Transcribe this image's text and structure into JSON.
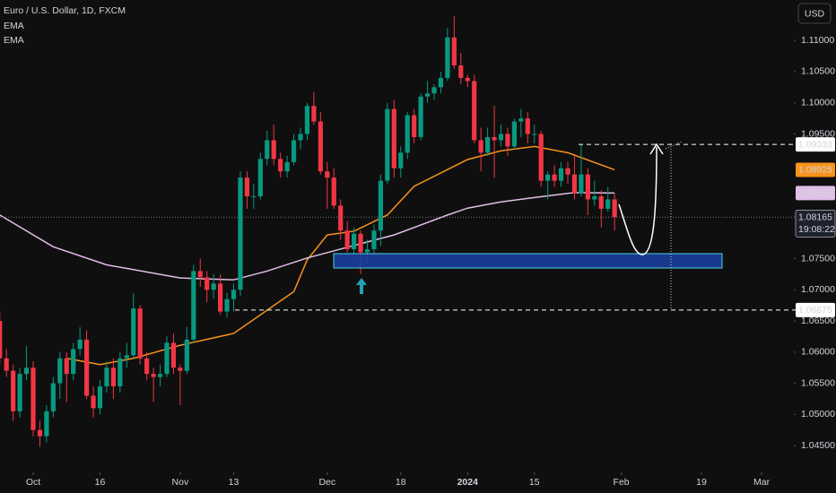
{
  "chart_data": {
    "type": "candlestick",
    "title": "Euro / U.S. Dollar, 1D, FXCM",
    "currency": "USD",
    "countdown": "19:08:22",
    "up_color": "#089981",
    "down_color": "#f23645",
    "x": [
      "2023-09-25",
      "2023-09-26",
      "2023-09-27",
      "2023-09-28",
      "2023-09-29",
      "2023-10-02",
      "2023-10-03",
      "2023-10-04",
      "2023-10-05",
      "2023-10-06",
      "2023-10-09",
      "2023-10-10",
      "2023-10-11",
      "2023-10-12",
      "2023-10-13",
      "2023-10-16",
      "2023-10-17",
      "2023-10-18",
      "2023-10-19",
      "2023-10-20",
      "2023-10-23",
      "2023-10-24",
      "2023-10-25",
      "2023-10-26",
      "2023-10-27",
      "2023-10-30",
      "2023-10-31",
      "2023-11-01",
      "2023-11-02",
      "2023-11-03",
      "2023-11-06",
      "2023-11-07",
      "2023-11-08",
      "2023-11-09",
      "2023-11-10",
      "2023-11-13",
      "2023-11-14",
      "2023-11-15",
      "2023-11-16",
      "2023-11-17",
      "2023-11-20",
      "2023-11-21",
      "2023-11-22",
      "2023-11-23",
      "2023-11-24",
      "2023-11-27",
      "2023-11-28",
      "2023-11-29",
      "2023-11-30",
      "2023-12-01",
      "2023-12-04",
      "2023-12-05",
      "2023-12-06",
      "2023-12-07",
      "2023-12-08",
      "2023-12-11",
      "2023-12-12",
      "2023-12-13",
      "2023-12-14",
      "2023-12-15",
      "2023-12-18",
      "2023-12-19",
      "2023-12-20",
      "2023-12-21",
      "2023-12-22",
      "2023-12-25",
      "2023-12-26",
      "2023-12-27",
      "2023-12-28",
      "2023-12-29",
      "2024-01-01",
      "2024-01-02",
      "2024-01-03",
      "2024-01-04",
      "2024-01-05",
      "2024-01-08",
      "2024-01-09",
      "2024-01-10",
      "2024-01-11",
      "2024-01-12",
      "2024-01-15",
      "2024-01-16",
      "2024-01-17",
      "2024-01-18",
      "2024-01-19",
      "2024-01-22",
      "2024-01-23",
      "2024-01-24",
      "2024-01-25",
      "2024-01-26",
      "2024-01-29",
      "2024-01-30",
      "2024-01-31"
    ],
    "open": [
      1.065,
      1.059,
      1.057,
      1.0505,
      1.0565,
      1.0575,
      1.0475,
      1.0465,
      1.0505,
      1.055,
      1.059,
      1.0565,
      1.0605,
      1.062,
      1.053,
      1.051,
      1.0545,
      1.0575,
      1.0545,
      1.059,
      1.0595,
      1.067,
      1.059,
      1.0565,
      1.056,
      1.0565,
      1.0615,
      1.0575,
      1.057,
      1.062,
      1.073,
      1.072,
      1.07,
      1.071,
      1.0665,
      1.0685,
      1.07,
      1.088,
      1.085,
      1.085,
      1.091,
      1.094,
      1.091,
      1.089,
      1.0905,
      1.094,
      1.095,
      1.0995,
      1.097,
      1.089,
      1.088,
      1.0835,
      1.0795,
      1.0765,
      1.079,
      1.076,
      1.0765,
      1.0795,
      1.0875,
      1.099,
      1.0895,
      1.092,
      1.098,
      1.0945,
      1.101,
      1.1015,
      1.1025,
      1.104,
      1.1105,
      1.106,
      1.104,
      1.1035,
      1.094,
      1.092,
      1.0945,
      1.094,
      1.095,
      1.093,
      1.097,
      1.0975,
      1.095,
      1.095,
      1.0875,
      1.0885,
      1.0875,
      1.0895,
      1.0885,
      1.0855,
      1.0885,
      1.0845,
      1.085,
      1.083,
      1.0845
    ],
    "high": [
      1.0665,
      1.0605,
      1.058,
      1.0575,
      1.061,
      1.0585,
      1.049,
      1.0515,
      1.056,
      1.06,
      1.06,
      1.0615,
      1.064,
      1.0635,
      1.0545,
      1.0555,
      1.0585,
      1.059,
      1.06,
      1.0615,
      1.0695,
      1.0675,
      1.06,
      1.0575,
      1.058,
      1.0625,
      1.063,
      1.058,
      1.064,
      1.074,
      1.075,
      1.073,
      1.0725,
      1.0725,
      1.0695,
      1.071,
      1.089,
      1.089,
      1.087,
      1.092,
      1.0955,
      1.0965,
      1.092,
      1.0915,
      1.095,
      1.096,
      1.1,
      1.1017,
      1.0985,
      1.0905,
      1.0895,
      1.0845,
      1.081,
      1.08,
      1.0795,
      1.078,
      1.0805,
      1.0885,
      1.1,
      1.1005,
      1.093,
      1.0985,
      1.099,
      1.1015,
      1.1035,
      1.103,
      1.105,
      1.112,
      1.1139,
      1.108,
      1.1045,
      1.1045,
      1.096,
      1.096,
      1.0995,
      1.0965,
      1.096,
      1.0975,
      1.099,
      1.0985,
      1.0965,
      1.0955,
      1.089,
      1.09,
      1.0905,
      1.0905,
      1.0915,
      1.0933,
      1.0895,
      1.0875,
      1.086,
      1.0865,
      1.0855
    ],
    "low": [
      1.058,
      1.056,
      1.049,
      1.0495,
      1.0555,
      1.0465,
      1.0448,
      1.0455,
      1.0495,
      1.0525,
      1.052,
      1.0555,
      1.0595,
      1.0525,
      1.0495,
      1.05,
      1.0535,
      1.0525,
      1.0535,
      1.0575,
      1.059,
      1.058,
      1.0555,
      1.052,
      1.0545,
      1.056,
      1.0565,
      1.0515,
      1.0565,
      1.0615,
      1.0705,
      1.068,
      1.0685,
      1.066,
      1.0655,
      1.0665,
      1.069,
      1.083,
      1.083,
      1.0845,
      1.09,
      1.09,
      1.088,
      1.088,
      1.09,
      1.0925,
      1.094,
      1.0965,
      1.0885,
      1.083,
      1.083,
      1.078,
      1.076,
      1.0755,
      1.0725,
      1.0745,
      1.0755,
      1.077,
      1.087,
      1.088,
      1.088,
      1.091,
      1.0935,
      1.094,
      1.1,
      1.1005,
      1.1015,
      1.1035,
      1.1055,
      1.103,
      1.1025,
      1.0935,
      1.089,
      1.0915,
      1.088,
      1.093,
      1.0915,
      1.0925,
      1.0945,
      1.0935,
      1.0935,
      1.0865,
      1.0845,
      1.0865,
      1.0865,
      1.087,
      1.0845,
      1.085,
      1.082,
      1.0835,
      1.08,
      1.0825,
      1.0795
    ],
    "close": [
      1.059,
      1.057,
      1.0505,
      1.0565,
      1.0575,
      1.0475,
      1.0465,
      1.0505,
      1.055,
      1.059,
      1.0565,
      1.0605,
      1.062,
      1.053,
      1.051,
      1.0545,
      1.0575,
      1.0545,
      1.059,
      1.0595,
      1.067,
      1.059,
      1.0565,
      1.056,
      1.0565,
      1.0615,
      1.0575,
      1.057,
      1.062,
      1.073,
      1.072,
      1.07,
      1.071,
      1.0665,
      1.0685,
      1.07,
      1.088,
      1.085,
      1.085,
      1.091,
      1.094,
      1.091,
      1.089,
      1.0905,
      1.094,
      1.095,
      1.0995,
      1.097,
      1.089,
      1.088,
      1.0835,
      1.0795,
      1.0765,
      1.079,
      1.076,
      1.0765,
      1.0795,
      1.0875,
      1.099,
      1.0895,
      1.092,
      1.098,
      1.0945,
      1.101,
      1.1015,
      1.1025,
      1.104,
      1.1105,
      1.106,
      1.104,
      1.1035,
      1.094,
      1.092,
      1.0945,
      1.094,
      1.095,
      1.093,
      1.097,
      1.0975,
      1.095,
      1.095,
      1.0875,
      1.0885,
      1.0875,
      1.0895,
      1.0885,
      1.0855,
      1.0885,
      1.0845,
      1.085,
      1.083,
      1.0845,
      1.08165
    ],
    "series": [
      {
        "name": "EMA",
        "color": "#f7931a",
        "x": [
          "2023-10-09",
          "2023-10-16",
          "2023-10-23",
          "2023-11-01",
          "2023-11-13",
          "2023-11-24",
          "2023-11-28",
          "2023-12-01",
          "2023-12-07",
          "2023-12-14",
          "2023-12-20",
          "2024-01-01",
          "2024-01-08",
          "2024-01-15",
          "2024-01-22",
          "2024-01-31"
        ],
        "values": [
          1.059,
          1.058,
          1.059,
          1.0611,
          1.063,
          1.0697,
          1.0748,
          1.0788,
          1.0794,
          1.082,
          1.0866,
          1.0909,
          1.0923,
          1.093,
          1.092,
          1.08925
        ]
      },
      {
        "name": "EMA",
        "color": "#e1bee7",
        "x": [
          "2023-09-25",
          "2023-10-05",
          "2023-10-17",
          "2023-11-01",
          "2023-11-13",
          "2023-11-20",
          "2023-11-28",
          "2023-12-08",
          "2023-12-15",
          "2023-12-27",
          "2024-01-01",
          "2024-01-08",
          "2024-01-15",
          "2024-01-23",
          "2024-01-31"
        ],
        "values": [
          1.082,
          1.0769,
          1.074,
          1.0719,
          1.0716,
          1.073,
          1.0751,
          1.0774,
          1.0788,
          1.082,
          1.0831,
          1.0841,
          1.0848,
          1.0856,
          1.08552
        ]
      }
    ],
    "levels": [
      {
        "value": 1.09333
      },
      {
        "value": 1.06675
      }
    ],
    "ylim": [
      1.0407,
      1.1165
    ],
    "yticks": [
      {
        "value": 1.11,
        "label": "1.11000"
      },
      {
        "value": 1.105,
        "label": "1.10500"
      },
      {
        "value": 1.1,
        "label": "1.10000"
      },
      {
        "value": 1.095,
        "label": "1.09500"
      },
      {
        "value": 1.075,
        "label": "1.07500"
      },
      {
        "value": 1.07,
        "label": "1.07000"
      },
      {
        "value": 1.065,
        "label": "1.06500"
      },
      {
        "value": 1.06,
        "label": "1.06000"
      },
      {
        "value": 1.055,
        "label": "1.05500"
      },
      {
        "value": 1.05,
        "label": "1.05000"
      },
      {
        "value": 1.045,
        "label": "1.04500"
      }
    ],
    "xticks": [
      {
        "value": "2023-10-02",
        "label": "Oct"
      },
      {
        "value": "2023-10-16",
        "label": "16"
      },
      {
        "value": "2023-11-01",
        "label": "Nov"
      },
      {
        "value": "2023-11-13",
        "label": "13"
      },
      {
        "value": "2023-12-01",
        "label": "Dec"
      },
      {
        "value": "2023-12-18",
        "label": "18"
      },
      {
        "value": "2024-01-01",
        "label": "2024"
      },
      {
        "value": "2024-01-15",
        "label": "15"
      },
      {
        "value": "2024-02-01",
        "label": "Feb"
      },
      {
        "value": "2024-02-19",
        "label": "19"
      },
      {
        "value": "2024-03-01",
        "label": "Mar"
      }
    ]
  }
}
